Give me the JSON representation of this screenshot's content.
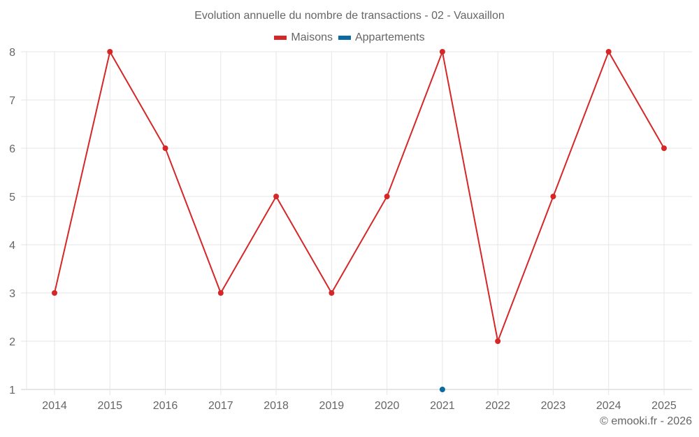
{
  "chart_data": {
    "type": "line",
    "title": "Evolution annuelle du nombre de transactions - 02 - Vauxaillon",
    "xlabel": "",
    "ylabel": "",
    "categories": [
      "2014",
      "2015",
      "2016",
      "2017",
      "2018",
      "2019",
      "2020",
      "2021",
      "2022",
      "2023",
      "2024",
      "2025"
    ],
    "series": [
      {
        "name": "Maisons",
        "color": "#d62728",
        "values": [
          3,
          8,
          6,
          3,
          5,
          3,
          5,
          8,
          2,
          5,
          8,
          6
        ]
      },
      {
        "name": "Appartements",
        "color": "#0a6aa1",
        "values": [
          null,
          null,
          null,
          null,
          null,
          null,
          null,
          1,
          null,
          null,
          null,
          null
        ]
      }
    ],
    "ylim": [
      1,
      8
    ],
    "yticks": [
      1,
      2,
      3,
      4,
      5,
      6,
      7,
      8
    ],
    "grid": true,
    "legend_position": "top"
  },
  "credit": "© emooki.fr - 2026"
}
